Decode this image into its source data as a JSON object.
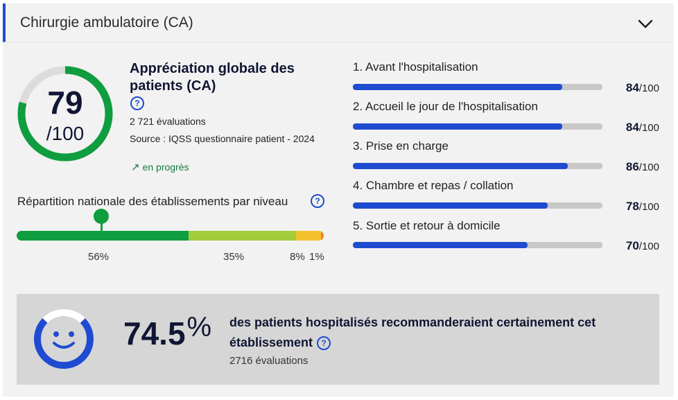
{
  "header": {
    "title": "Chirurgie ambulatoire (CA)",
    "toggle_icon": "chevron-down-icon"
  },
  "global": {
    "score": "79",
    "max": "/100",
    "score_fraction": 0.79,
    "title": "Appréciation globale des patients (CA)",
    "evaluations": "2 721 évaluations",
    "source": "Source : IQSS questionnaire patient - 2024",
    "trend_arrow": "↗",
    "trend": "en progrès"
  },
  "distribution": {
    "title": "Répartition nationale des établissements par niveau",
    "segments": [
      {
        "label": "56%",
        "value": 56,
        "color": "#0f9d3f"
      },
      {
        "label": "35%",
        "value": 35,
        "color": "#a3cd3b"
      },
      {
        "label": "8%",
        "value": 8,
        "color": "#f4c12e"
      },
      {
        "label": "1%",
        "value": 1,
        "color": "#ef8431"
      }
    ]
  },
  "criteria": [
    {
      "label": "1. Avant l'hospitalisation",
      "score": "84",
      "max": "/100",
      "value": 84
    },
    {
      "label": "2. Accueil le jour de l'hospitalisation",
      "score": "84",
      "max": "/100",
      "value": 84
    },
    {
      "label": "3. Prise en charge",
      "score": "86",
      "max": "/100",
      "value": 86
    },
    {
      "label": "4. Chambre et repas / collation",
      "score": "78",
      "max": "/100",
      "value": 78
    },
    {
      "label": "5. Sortie et retour à domicile",
      "score": "70",
      "max": "/100",
      "value": 70
    }
  ],
  "recommendation": {
    "value": "74.5",
    "unit": "%",
    "fraction": 0.745,
    "text": "des patients hospitalisés recommanderaient certainement cet établissement",
    "evaluations": "2716 évaluations"
  },
  "colors": {
    "accent": "#1f4bd1",
    "green": "#0f9d3f",
    "navy": "#101633",
    "track": "#c8c8c8"
  }
}
